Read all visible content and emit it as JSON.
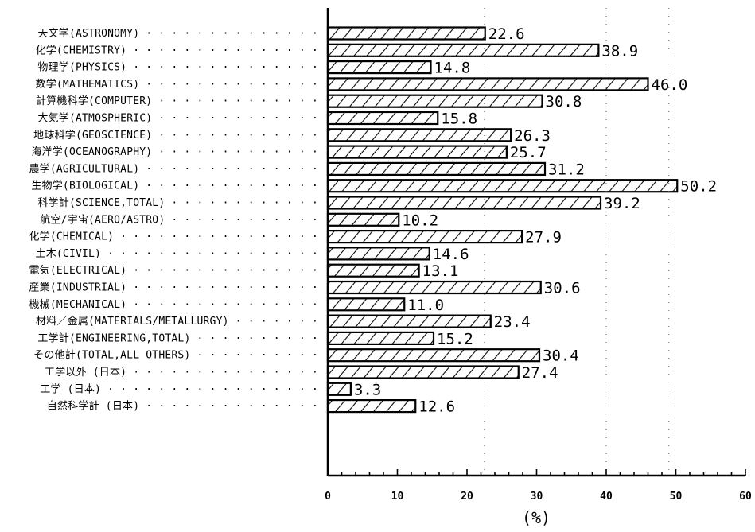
{
  "chart_data": {
    "type": "bar",
    "orientation": "horizontal",
    "categories": [
      "天文学(ASTRONOMY)",
      "化学(CHEMISTRY)",
      "物理学(PHYSICS)",
      "数学(MATHEMATICS)",
      "計算機科学(COMPUTER)",
      "大気学(ATMOSPHERIC)",
      "地球科学(GEOSCIENCE)",
      "海洋学(OCEANOGRAPHY)",
      "農学(AGRICULTURAL)",
      "生物学(BIOLOGICAL)",
      "科学計(SCIENCE,TOTAL)",
      "航空/宇宙(AERO/ASTRO)",
      "化学(CHEMICAL)",
      "土木(CIVIL)",
      "電気(ELECTRICAL)",
      "産業(INDUSTRIAL)",
      "機械(MECHANICAL)",
      "材料／金属(MATERIALS/METALLURGY)",
      "工学計(ENGINEERING,TOTAL)",
      "その他計(TOTAL,ALL OTHERS)",
      "工学以外 (日本)",
      "工学 (日本)",
      "自然科学計 (日本)"
    ],
    "values": [
      22.6,
      38.9,
      14.8,
      46.0,
      30.8,
      15.8,
      26.3,
      25.7,
      31.2,
      50.2,
      39.2,
      10.2,
      27.9,
      14.6,
      13.1,
      30.6,
      11.0,
      23.4,
      15.2,
      30.4,
      27.4,
      3.3,
      12.6
    ],
    "value_labels": [
      "22.6",
      "38.9",
      "14.8",
      "46.0",
      "30.8",
      "15.8",
      "26.3",
      "25.7",
      "31.2",
      "50.2",
      "39.2",
      "10.2",
      "27.9",
      "14.6",
      "13.1",
      "30.6",
      "11.0",
      "23.4",
      "15.2",
      "30.4",
      "27.4",
      "3.3",
      "12.6"
    ],
    "xlim": [
      0,
      60
    ],
    "xticks": [
      "0",
      "10",
      "20",
      "30",
      "40",
      "50",
      "60"
    ],
    "xlabel": "(%)",
    "title": "",
    "bar_fill": "hatched",
    "grid": false
  }
}
